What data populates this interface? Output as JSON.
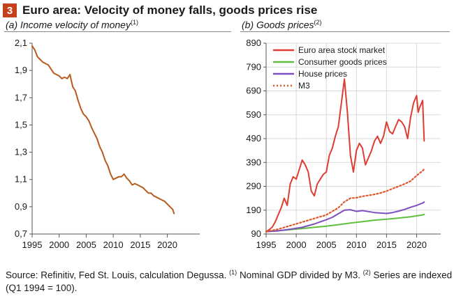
{
  "figure": {
    "number": "3",
    "title": "Euro area: Velocity of money falls, goods prices rise",
    "source_text": "Source: Refinitiv, Fed St. Louis, calculation Degussa.",
    "note1_mark": "(1)",
    "note1_text": "Nominal GDP divided by M3.",
    "note2_mark": "(2)",
    "note2_text": "Series are indexed (Q1 1994 = 100)."
  },
  "colors": {
    "accent": "#c4411c"
  },
  "chart_data": [
    {
      "type": "line",
      "title": "(a) Income velocity of money",
      "title_text": "(a) Income velocity of money",
      "title_mark": "(1)",
      "xlim": [
        1995,
        2026
      ],
      "ylim": [
        0.7,
        2.1
      ],
      "x_ticks": [
        1995,
        2000,
        2005,
        2010,
        2015,
        2020
      ],
      "y_ticks": [
        "2,1",
        "1,9",
        "1,7",
        "1,5",
        "1,3",
        "1,1",
        "0,9",
        "0,7"
      ],
      "y_tick_values": [
        2.1,
        1.9,
        1.7,
        1.5,
        1.3,
        1.1,
        0.9,
        0.7
      ],
      "grid": false,
      "series": [
        {
          "color": "#b85a1c",
          "x": [
            1995.0,
            1995.5,
            1996.0,
            1996.5,
            1997.0,
            1997.5,
            1998.0,
            1998.5,
            1999.0,
            1999.5,
            2000.0,
            2000.5,
            2001.0,
            2001.5,
            2002.0,
            2002.5,
            2003.0,
            2003.5,
            2004.0,
            2004.5,
            2005.0,
            2005.5,
            2006.0,
            2006.5,
            2007.0,
            2007.5,
            2008.0,
            2008.5,
            2009.0,
            2009.5,
            2010.0,
            2010.5,
            2011.0,
            2011.5,
            2012.0,
            2012.5,
            2013.0,
            2013.5,
            2014.0,
            2014.5,
            2015.0,
            2015.5,
            2016.0,
            2016.5,
            2017.0,
            2017.5,
            2018.0,
            2018.5,
            2019.0,
            2019.5,
            2020.0,
            2020.5,
            2021.0,
            2021.25
          ],
          "values": [
            2.08,
            2.05,
            2.0,
            1.98,
            1.96,
            1.95,
            1.94,
            1.91,
            1.88,
            1.87,
            1.86,
            1.84,
            1.85,
            1.84,
            1.87,
            1.78,
            1.75,
            1.68,
            1.62,
            1.58,
            1.56,
            1.53,
            1.48,
            1.44,
            1.4,
            1.34,
            1.3,
            1.24,
            1.2,
            1.14,
            1.1,
            1.11,
            1.12,
            1.12,
            1.14,
            1.11,
            1.09,
            1.06,
            1.07,
            1.06,
            1.05,
            1.04,
            1.02,
            1.0,
            1.0,
            0.98,
            0.97,
            0.96,
            0.95,
            0.94,
            0.92,
            0.9,
            0.88,
            0.85
          ]
        }
      ]
    },
    {
      "type": "line",
      "title": "(b) Goods prices",
      "title_text": "(b) Goods prices",
      "title_mark": "(2)",
      "xlim": [
        1995,
        2024
      ],
      "ylim": [
        90,
        890
      ],
      "x_ticks": [
        1995,
        2000,
        2005,
        2010,
        2015,
        2020
      ],
      "y_ticks": [
        890,
        790,
        690,
        590,
        490,
        390,
        290,
        190,
        90
      ],
      "grid": true,
      "legend_position": "top-left",
      "series": [
        {
          "name": "Euro area stock market",
          "color": "#e03c31",
          "style": "solid",
          "x": [
            1995.0,
            1995.5,
            1996.0,
            1996.5,
            1997.0,
            1997.5,
            1998.0,
            1998.5,
            1999.0,
            1999.5,
            2000.0,
            2000.5,
            2001.0,
            2001.5,
            2002.0,
            2002.5,
            2003.0,
            2003.5,
            2004.0,
            2004.5,
            2005.0,
            2005.5,
            2006.0,
            2006.5,
            2007.0,
            2007.5,
            2008.0,
            2008.5,
            2009.0,
            2009.5,
            2010.0,
            2010.5,
            2011.0,
            2011.5,
            2012.0,
            2012.5,
            2013.0,
            2013.5,
            2014.0,
            2014.5,
            2015.0,
            2015.5,
            2016.0,
            2016.5,
            2017.0,
            2017.5,
            2018.0,
            2018.5,
            2019.0,
            2019.5,
            2020.0,
            2020.25,
            2020.5,
            2021.0,
            2021.25
          ],
          "values": [
            100,
            108,
            118,
            140,
            170,
            200,
            240,
            210,
            300,
            330,
            320,
            360,
            400,
            380,
            350,
            270,
            250,
            300,
            320,
            340,
            350,
            420,
            450,
            500,
            540,
            640,
            740,
            600,
            420,
            350,
            440,
            470,
            450,
            380,
            410,
            440,
            480,
            500,
            470,
            500,
            560,
            520,
            510,
            540,
            570,
            560,
            540,
            490,
            580,
            640,
            670,
            600,
            620,
            650,
            480
          ]
        },
        {
          "name": "Consumer goods prices",
          "color": "#5fbf3c",
          "style": "solid",
          "x": [
            1995,
            1997,
            1999,
            2001,
            2003,
            2005,
            2007,
            2009,
            2011,
            2013,
            2015,
            2017,
            2019,
            2021,
            2021.25
          ],
          "values": [
            100,
            104,
            108,
            113,
            118,
            123,
            129,
            136,
            142,
            148,
            152,
            157,
            162,
            170,
            172
          ]
        },
        {
          "name": "House prices",
          "color": "#7b4fc0",
          "style": "solid",
          "x": [
            1995,
            1997,
            1999,
            2001,
            2003,
            2005,
            2006,
            2007,
            2008,
            2009,
            2010,
            2011,
            2012,
            2013,
            2014,
            2015,
            2016,
            2017,
            2018,
            2019,
            2020,
            2021,
            2021.25
          ],
          "values": [
            100,
            103,
            110,
            118,
            132,
            150,
            160,
            175,
            190,
            192,
            185,
            188,
            184,
            180,
            178,
            176,
            180,
            186,
            193,
            202,
            210,
            220,
            224
          ]
        },
        {
          "name": "M3",
          "color": "#e0552a",
          "style": "dotted",
          "x": [
            1995,
            1997,
            1999,
            2001,
            2003,
            2005,
            2007,
            2008,
            2009,
            2010,
            2011,
            2012,
            2013,
            2014,
            2015,
            2016,
            2017,
            2018,
            2019,
            2020,
            2021,
            2021.25
          ],
          "values": [
            100,
            110,
            125,
            140,
            155,
            170,
            200,
            225,
            240,
            242,
            248,
            252,
            256,
            262,
            270,
            280,
            290,
            300,
            312,
            335,
            355,
            362
          ]
        }
      ]
    }
  ]
}
